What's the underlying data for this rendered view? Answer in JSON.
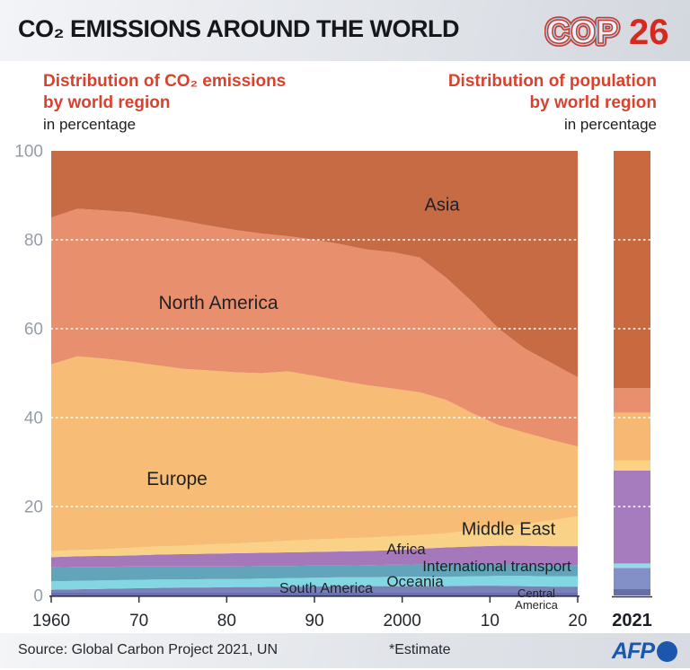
{
  "header": {
    "title": "CO₂ EMISSIONS AROUND THE WORLD",
    "logo_cop": "COP",
    "logo_26": "26"
  },
  "panels": {
    "left": {
      "title_line1": "Distribution of CO₂ emissions",
      "title_line2": "by world region",
      "unit": "in percentage"
    },
    "right": {
      "title_line1": "Distribution of population",
      "title_line2": "by world region",
      "unit": "in percentage"
    }
  },
  "labels": {
    "asia": "Asia",
    "north_america": "North America",
    "europe": "Europe",
    "middle_east": "Middle East",
    "africa": "Africa",
    "international_transport": "International transport",
    "oceania": "Oceania",
    "south_america": "South America",
    "central_america": "Central\nAmerica"
  },
  "colors": {
    "accent_red": "#d7432e",
    "afp_blue": "#1a57ad",
    "axis_dark": "#2e333d",
    "tick_gray": "#959da8"
  },
  "chart_data": {
    "type": "area",
    "stacked": true,
    "title": "Distribution of CO₂ emissions by world region (in percentage)",
    "ylim": [
      0,
      100
    ],
    "grid": "dotted-white",
    "years": [
      1960,
      1963,
      1966,
      1969,
      1972,
      1975,
      1978,
      1981,
      1984,
      1987,
      1990,
      1993,
      1996,
      1999,
      2002,
      2005,
      2008,
      2011,
      2014,
      2017,
      2020
    ],
    "y_gridlines": [
      20,
      40,
      60,
      80
    ],
    "y_ticks": [
      {
        "value": 0,
        "label": "0"
      },
      {
        "value": 20,
        "label": "20"
      },
      {
        "value": 40,
        "label": "40"
      },
      {
        "value": 60,
        "label": "60"
      },
      {
        "value": 80,
        "label": "80"
      },
      {
        "value": 100,
        "label": "100"
      }
    ],
    "x_ticks": [
      {
        "year": 1960,
        "label": "1960"
      },
      {
        "year": 1970,
        "label": "70"
      },
      {
        "year": 1980,
        "label": "80"
      },
      {
        "year": 1990,
        "label": "90"
      },
      {
        "year": 2000,
        "label": "2000"
      },
      {
        "year": 2010,
        "label": "10"
      },
      {
        "year": 2020,
        "label": "20"
      }
    ],
    "series": [
      {
        "id": "central-america",
        "name": "Central America",
        "color": "#6a70ab",
        "values": [
          0.6,
          0.6,
          0.6,
          0.6,
          0.6,
          0.6,
          0.6,
          0.6,
          0.6,
          0.6,
          0.6,
          0.6,
          0.6,
          0.6,
          0.6,
          0.6,
          0.6,
          0.6,
          0.6,
          0.6,
          0.6
        ]
      },
      {
        "id": "south-america",
        "name": "South America",
        "color": "#7b80b9",
        "values": [
          0.7,
          0.8,
          0.9,
          1.0,
          1.1,
          1.2,
          1.2,
          1.3,
          1.3,
          1.4,
          1.4,
          1.5,
          1.5,
          1.5,
          1.5,
          1.5,
          1.6,
          1.6,
          1.5,
          1.4,
          1.4
        ]
      },
      {
        "id": "oceania",
        "name": "Oceania",
        "color": "#83d7e3",
        "values": [
          1.9,
          1.9,
          1.9,
          1.9,
          1.9,
          1.8,
          1.9,
          1.8,
          1.9,
          1.9,
          2.0,
          2.0,
          2.0,
          2.1,
          2.1,
          2.1,
          2.1,
          2.2,
          2.3,
          2.3,
          2.3
        ]
      },
      {
        "id": "international-transport",
        "name": "International transport",
        "color": "#62a4ba",
        "values": [
          3.1,
          3.1,
          3.0,
          3.0,
          2.9,
          2.9,
          2.8,
          2.8,
          2.8,
          2.7,
          2.7,
          2.6,
          2.7,
          2.7,
          2.8,
          2.8,
          2.7,
          2.6,
          2.5,
          2.5,
          2.4
        ]
      },
      {
        "id": "africa",
        "name": "Africa",
        "color": "#a478ba",
        "values": [
          2.3,
          2.4,
          2.5,
          2.5,
          2.7,
          2.8,
          2.9,
          3.0,
          3.0,
          3.1,
          3.1,
          3.2,
          3.2,
          3.3,
          3.5,
          3.8,
          4.0,
          4.2,
          4.3,
          4.3,
          4.4
        ]
      },
      {
        "id": "middle-east",
        "name": "Middle East",
        "color": "#f9d287",
        "values": [
          1.4,
          1.4,
          1.5,
          1.7,
          1.8,
          1.9,
          2.1,
          2.2,
          2.4,
          2.6,
          2.8,
          2.9,
          3.0,
          3.1,
          3.1,
          3.2,
          3.6,
          4.1,
          4.8,
          5.8,
          6.7
        ]
      },
      {
        "id": "europe",
        "name": "Europe",
        "color": "#f7bd76",
        "values": [
          42.0,
          43.6,
          42.9,
          41.9,
          40.8,
          39.8,
          39.1,
          38.5,
          38.0,
          38.1,
          36.8,
          35.5,
          34.3,
          33.2,
          32.1,
          30.0,
          26.4,
          23.0,
          20.6,
          18.1,
          15.7
        ]
      },
      {
        "id": "north-america",
        "name": "North America",
        "color": "#e88f6d",
        "values": [
          33.0,
          33.2,
          33.3,
          33.6,
          33.5,
          33.3,
          32.6,
          32.0,
          31.4,
          30.4,
          30.6,
          30.7,
          30.5,
          30.7,
          30.3,
          27.5,
          25.0,
          21.7,
          18.9,
          17.3,
          15.6
        ]
      },
      {
        "id": "asia",
        "name": "Asia",
        "color": "#c76b45",
        "values": [
          15.0,
          13.0,
          13.4,
          13.8,
          14.7,
          15.7,
          16.8,
          17.8,
          18.6,
          19.2,
          20.0,
          21.0,
          22.2,
          22.8,
          24.0,
          28.5,
          34.0,
          40.0,
          44.5,
          47.7,
          50.9
        ]
      }
    ],
    "population_bar": {
      "title": "Distribution of population by world region (in percentage)",
      "year_label": "2021",
      "segments": [
        {
          "id": "central-america",
          "name": "Central America",
          "color": "#666ea6",
          "value": 1.5
        },
        {
          "id": "south-america",
          "name": "South America",
          "color": "#8390c7",
          "value": 4.7
        },
        {
          "id": "oceania",
          "name": "Oceania",
          "color": "#8fdceb",
          "value": 1.0
        },
        {
          "id": "africa",
          "name": "Africa",
          "color": "#a77cbf",
          "value": 20.9
        },
        {
          "id": "middle-east",
          "name": "Middle East",
          "color": "#fad282",
          "value": 2.3
        },
        {
          "id": "europe",
          "name": "Europe",
          "color": "#f6b873",
          "value": 10.7
        },
        {
          "id": "north-america",
          "name": "North America",
          "color": "#e8906e",
          "value": 5.5
        },
        {
          "id": "asia",
          "name": "Asia",
          "color": "#c8693f",
          "value": 53.4
        }
      ]
    }
  },
  "footer": {
    "source": "Source: Global Carbon Project 2021, UN",
    "estimate": "*Estimate",
    "afp": "AFP"
  }
}
